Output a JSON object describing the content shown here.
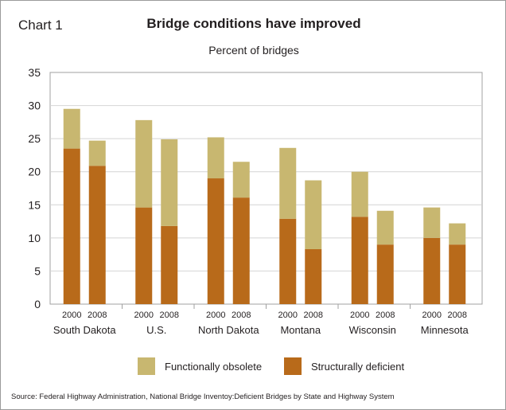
{
  "header": {
    "chart_label": "Chart 1",
    "title": "Bridge conditions have improved",
    "subtitle": "Percent of bridges"
  },
  "legend": {
    "functionally_obsolete": "Functionally obsolete",
    "structurally_deficient": "Structurally deficient"
  },
  "source": "Source: Federal Highway Administration, National Bridge Inventoy:Deficient Bridges by State and Highway System",
  "colors": {
    "functionally_obsolete": "#c8b770",
    "structurally_deficient": "#b86a1a",
    "grid": "#d4d4d4",
    "axis": "#a0a0a0"
  },
  "chart_data": {
    "type": "bar",
    "stacked": true,
    "title": "Bridge conditions have improved",
    "subtitle": "Percent of bridges",
    "ylabel": "",
    "xlabel": "",
    "ylim": [
      0,
      35
    ],
    "yticks": [
      0,
      5,
      10,
      15,
      20,
      25,
      30,
      35
    ],
    "grid": true,
    "legend_position": "bottom",
    "groups": [
      {
        "name": "South Dakota",
        "bars": [
          {
            "year": "2000",
            "structurally_deficient": 23.5,
            "functionally_obsolete": 6.0
          },
          {
            "year": "2008",
            "structurally_deficient": 20.9,
            "functionally_obsolete": 3.8
          }
        ]
      },
      {
        "name": "U.S.",
        "bars": [
          {
            "year": "2000",
            "structurally_deficient": 14.6,
            "functionally_obsolete": 13.2
          },
          {
            "year": "2008",
            "structurally_deficient": 11.8,
            "functionally_obsolete": 13.1
          }
        ]
      },
      {
        "name": "North Dakota",
        "bars": [
          {
            "year": "2000",
            "structurally_deficient": 19.0,
            "functionally_obsolete": 6.2
          },
          {
            "year": "2008",
            "structurally_deficient": 16.1,
            "functionally_obsolete": 5.4
          }
        ]
      },
      {
        "name": "Montana",
        "bars": [
          {
            "year": "2000",
            "structurally_deficient": 12.9,
            "functionally_obsolete": 10.7
          },
          {
            "year": "2008",
            "structurally_deficient": 8.3,
            "functionally_obsolete": 10.4
          }
        ]
      },
      {
        "name": "Wisconsin",
        "bars": [
          {
            "year": "2000",
            "structurally_deficient": 13.2,
            "functionally_obsolete": 6.8
          },
          {
            "year": "2008",
            "structurally_deficient": 9.0,
            "functionally_obsolete": 5.1
          }
        ]
      },
      {
        "name": "Minnesota",
        "bars": [
          {
            "year": "2000",
            "structurally_deficient": 10.0,
            "functionally_obsolete": 4.6
          },
          {
            "year": "2008",
            "structurally_deficient": 9.0,
            "functionally_obsolete": 3.2
          }
        ]
      }
    ],
    "series": [
      {
        "name": "Structurally deficient",
        "key": "structurally_deficient"
      },
      {
        "name": "Functionally obsolete",
        "key": "functionally_obsolete"
      }
    ]
  }
}
